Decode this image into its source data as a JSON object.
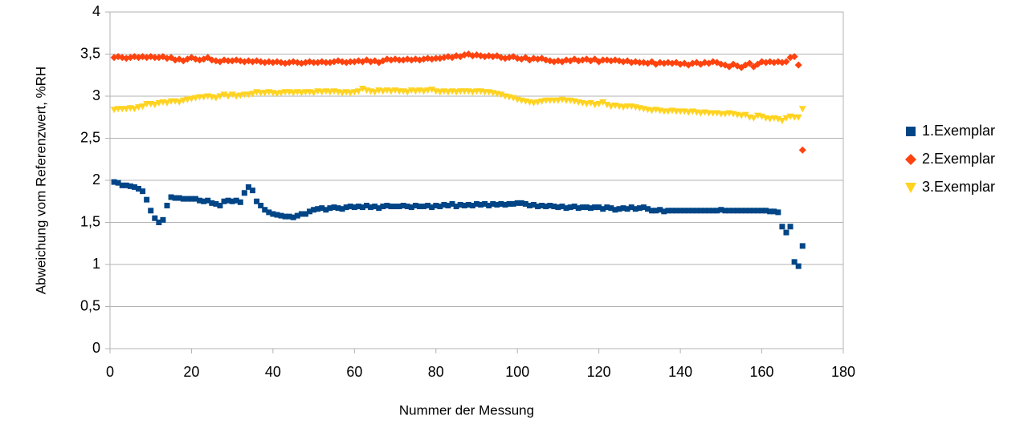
{
  "chart_data": {
    "type": "scatter",
    "y_label": "Abweichung vom Referenzwert, %RH",
    "x_label": "Nummer der Messung",
    "xlim": [
      0,
      180
    ],
    "xticks": [
      0,
      20,
      40,
      60,
      80,
      100,
      120,
      140,
      160,
      180
    ],
    "ylim": [
      0,
      4
    ],
    "yticks": [
      0,
      {
        "value": 0.5,
        "label": "0,5"
      },
      1,
      {
        "value": 1.5,
        "label": "1,5"
      },
      2,
      {
        "value": 2.5,
        "label": "2,5"
      },
      3,
      {
        "value": 3.5,
        "label": "3,5"
      },
      4
    ],
    "grid": true,
    "legend": "right",
    "x": [
      1,
      2,
      3,
      4,
      5,
      6,
      7,
      8,
      9,
      10,
      11,
      12,
      13,
      14,
      15,
      16,
      17,
      18,
      19,
      20,
      21,
      22,
      23,
      24,
      25,
      26,
      27,
      28,
      29,
      30,
      31,
      32,
      33,
      34,
      35,
      36,
      37,
      38,
      39,
      40,
      41,
      42,
      43,
      44,
      45,
      46,
      47,
      48,
      49,
      50,
      51,
      52,
      53,
      54,
      55,
      56,
      57,
      58,
      59,
      60,
      61,
      62,
      63,
      64,
      65,
      66,
      67,
      68,
      69,
      70,
      71,
      72,
      73,
      74,
      75,
      76,
      77,
      78,
      79,
      80,
      81,
      82,
      83,
      84,
      85,
      86,
      87,
      88,
      89,
      90,
      91,
      92,
      93,
      94,
      95,
      96,
      97,
      98,
      99,
      100,
      101,
      102,
      103,
      104,
      105,
      106,
      107,
      108,
      109,
      110,
      111,
      112,
      113,
      114,
      115,
      116,
      117,
      118,
      119,
      120,
      121,
      122,
      123,
      124,
      125,
      126,
      127,
      128,
      129,
      130,
      131,
      132,
      133,
      134,
      135,
      136,
      137,
      138,
      139,
      140,
      141,
      142,
      143,
      144,
      145,
      146,
      147,
      148,
      149,
      150,
      151,
      152,
      153,
      154,
      155,
      156,
      157,
      158,
      159,
      160,
      161,
      162,
      163,
      164,
      165,
      166,
      167,
      168,
      169,
      170
    ],
    "series": [
      {
        "name": "1.Exemplar",
        "color": "#004586",
        "marker": "square",
        "values": [
          1.98,
          1.97,
          1.94,
          1.94,
          1.93,
          1.92,
          1.9,
          1.87,
          1.77,
          1.64,
          1.55,
          1.5,
          1.53,
          1.7,
          1.8,
          1.79,
          1.79,
          1.78,
          1.78,
          1.78,
          1.78,
          1.76,
          1.75,
          1.76,
          1.73,
          1.72,
          1.7,
          1.75,
          1.76,
          1.75,
          1.76,
          1.74,
          1.85,
          1.92,
          1.88,
          1.75,
          1.7,
          1.65,
          1.62,
          1.6,
          1.59,
          1.58,
          1.57,
          1.57,
          1.56,
          1.58,
          1.6,
          1.6,
          1.63,
          1.65,
          1.66,
          1.67,
          1.65,
          1.67,
          1.68,
          1.67,
          1.66,
          1.68,
          1.69,
          1.68,
          1.69,
          1.68,
          1.7,
          1.68,
          1.69,
          1.67,
          1.69,
          1.7,
          1.69,
          1.69,
          1.69,
          1.7,
          1.69,
          1.68,
          1.7,
          1.69,
          1.69,
          1.7,
          1.68,
          1.7,
          1.69,
          1.71,
          1.7,
          1.72,
          1.69,
          1.71,
          1.7,
          1.71,
          1.7,
          1.72,
          1.71,
          1.72,
          1.7,
          1.72,
          1.71,
          1.72,
          1.71,
          1.72,
          1.72,
          1.73,
          1.73,
          1.72,
          1.7,
          1.71,
          1.69,
          1.7,
          1.69,
          1.7,
          1.69,
          1.68,
          1.69,
          1.67,
          1.68,
          1.69,
          1.67,
          1.68,
          1.68,
          1.67,
          1.68,
          1.68,
          1.66,
          1.68,
          1.67,
          1.65,
          1.66,
          1.67,
          1.66,
          1.68,
          1.66,
          1.67,
          1.68,
          1.66,
          1.64,
          1.64,
          1.65,
          1.63,
          1.64,
          1.64,
          1.64,
          1.64,
          1.64,
          1.64,
          1.64,
          1.64,
          1.64,
          1.64,
          1.64,
          1.64,
          1.64,
          1.65,
          1.64,
          1.64,
          1.64,
          1.64,
          1.64,
          1.64,
          1.64,
          1.64,
          1.64,
          1.64,
          1.64,
          1.63,
          1.63,
          1.62,
          1.45,
          1.38,
          1.45,
          1.03,
          0.98,
          1.22
        ]
      },
      {
        "name": "2.Exemplar",
        "color": "#ff420e",
        "marker": "diamond",
        "values": [
          3.46,
          3.47,
          3.46,
          3.45,
          3.46,
          3.47,
          3.46,
          3.47,
          3.46,
          3.47,
          3.46,
          3.46,
          3.47,
          3.45,
          3.46,
          3.43,
          3.44,
          3.42,
          3.44,
          3.46,
          3.44,
          3.43,
          3.44,
          3.46,
          3.43,
          3.42,
          3.41,
          3.43,
          3.42,
          3.42,
          3.43,
          3.42,
          3.41,
          3.42,
          3.41,
          3.42,
          3.41,
          3.4,
          3.41,
          3.4,
          3.41,
          3.4,
          3.39,
          3.4,
          3.41,
          3.4,
          3.39,
          3.4,
          3.41,
          3.4,
          3.4,
          3.41,
          3.4,
          3.4,
          3.41,
          3.42,
          3.41,
          3.4,
          3.41,
          3.41,
          3.42,
          3.41,
          3.43,
          3.41,
          3.42,
          3.4,
          3.42,
          3.44,
          3.43,
          3.44,
          3.43,
          3.43,
          3.44,
          3.43,
          3.44,
          3.43,
          3.44,
          3.45,
          3.44,
          3.45,
          3.45,
          3.46,
          3.47,
          3.46,
          3.48,
          3.47,
          3.49,
          3.5,
          3.48,
          3.49,
          3.48,
          3.47,
          3.48,
          3.47,
          3.48,
          3.46,
          3.45,
          3.46,
          3.47,
          3.45,
          3.44,
          3.46,
          3.43,
          3.45,
          3.44,
          3.45,
          3.43,
          3.42,
          3.41,
          3.42,
          3.41,
          3.43,
          3.42,
          3.44,
          3.42,
          3.43,
          3.44,
          3.42,
          3.44,
          3.41,
          3.43,
          3.43,
          3.42,
          3.43,
          3.42,
          3.41,
          3.42,
          3.4,
          3.41,
          3.4,
          3.4,
          3.39,
          3.41,
          3.38,
          3.4,
          3.39,
          3.4,
          3.39,
          3.4,
          3.38,
          3.39,
          3.37,
          3.39,
          3.4,
          3.38,
          3.4,
          3.39,
          3.41,
          3.4,
          3.38,
          3.37,
          3.35,
          3.38,
          3.36,
          3.34,
          3.37,
          3.39,
          3.35,
          3.38,
          3.41,
          3.4,
          3.41,
          3.4,
          3.41,
          3.4,
          3.41,
          3.46,
          3.47,
          3.37,
          2.36
        ]
      },
      {
        "name": "3.Exemplar",
        "color": "#ffd320",
        "marker": "triangle-down",
        "values": [
          2.84,
          2.85,
          2.85,
          2.85,
          2.86,
          2.85,
          2.87,
          2.88,
          2.91,
          2.91,
          2.9,
          2.92,
          2.93,
          2.92,
          2.94,
          2.94,
          2.93,
          2.95,
          2.96,
          2.97,
          2.98,
          2.99,
          2.99,
          3.0,
          2.99,
          2.98,
          3.0,
          3.02,
          3.0,
          3.02,
          3.0,
          3.01,
          3.02,
          3.02,
          3.03,
          3.05,
          3.04,
          3.04,
          3.05,
          3.04,
          3.03,
          3.04,
          3.05,
          3.05,
          3.04,
          3.05,
          3.04,
          3.05,
          3.05,
          3.04,
          3.06,
          3.05,
          3.06,
          3.05,
          3.06,
          3.05,
          3.04,
          3.05,
          3.04,
          3.05,
          3.06,
          3.09,
          3.07,
          3.06,
          3.05,
          3.07,
          3.06,
          3.07,
          3.06,
          3.07,
          3.06,
          3.06,
          3.05,
          3.07,
          3.06,
          3.07,
          3.06,
          3.07,
          3.08,
          3.06,
          3.05,
          3.06,
          3.05,
          3.06,
          3.05,
          3.06,
          3.06,
          3.06,
          3.05,
          3.06,
          3.06,
          3.05,
          3.05,
          3.04,
          3.03,
          3.02,
          3.0,
          2.99,
          2.98,
          2.96,
          2.95,
          2.94,
          2.93,
          2.92,
          2.93,
          2.94,
          2.95,
          2.95,
          2.95,
          2.95,
          2.96,
          2.95,
          2.95,
          2.94,
          2.93,
          2.92,
          2.91,
          2.92,
          2.9,
          2.91,
          2.93,
          2.9,
          2.88,
          2.89,
          2.88,
          2.87,
          2.88,
          2.88,
          2.87,
          2.86,
          2.85,
          2.84,
          2.83,
          2.84,
          2.83,
          2.82,
          2.82,
          2.83,
          2.82,
          2.82,
          2.82,
          2.81,
          2.82,
          2.81,
          2.8,
          2.81,
          2.8,
          2.8,
          2.8,
          2.79,
          2.79,
          2.8,
          2.79,
          2.78,
          2.77,
          2.78,
          2.75,
          2.74,
          2.77,
          2.76,
          2.74,
          2.73,
          2.74,
          2.73,
          2.71,
          2.74,
          2.76,
          2.75,
          2.75,
          2.85
        ]
      }
    ]
  }
}
